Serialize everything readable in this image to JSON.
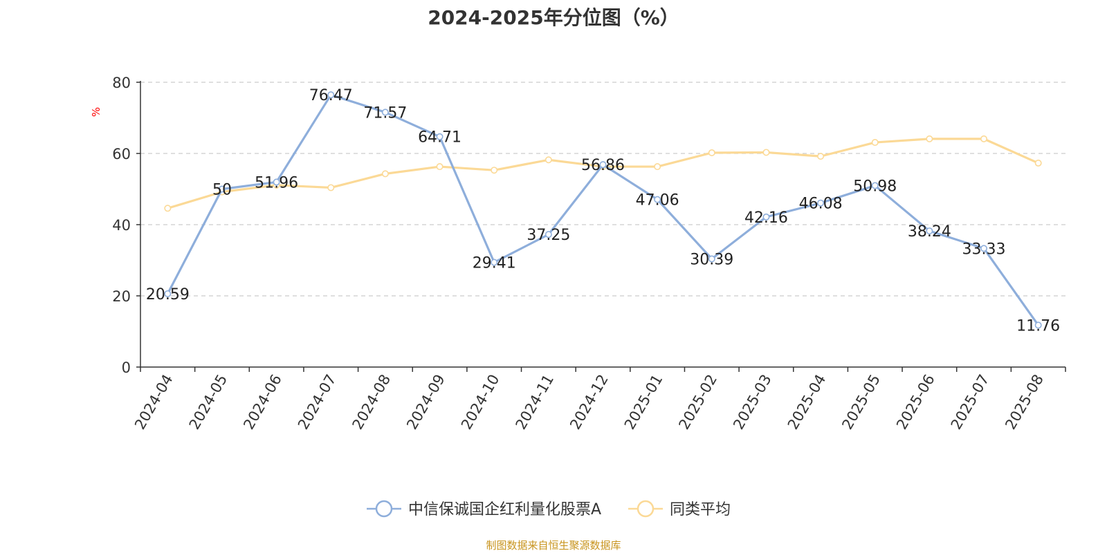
{
  "chart_data": {
    "type": "line",
    "title": "2024-2025年分位图（%）",
    "ylabel": "%",
    "xlabel": "",
    "ylim": [
      0,
      80
    ],
    "yticks": [
      0,
      20,
      40,
      60,
      80
    ],
    "grid": true,
    "legend_position": "bottom",
    "categories": [
      "2024-04",
      "2024-05",
      "2024-06",
      "2024-07",
      "2024-08",
      "2024-09",
      "2024-10",
      "2024-11",
      "2024-12",
      "2025-01",
      "2025-02",
      "2025-03",
      "2025-04",
      "2025-05",
      "2025-06",
      "2025-07",
      "2025-08"
    ],
    "series": [
      {
        "name": "中信保诚国企红利量化股票A",
        "color": "#8eaedb",
        "show_labels": true,
        "values": [
          20.59,
          50,
          51.96,
          76.47,
          71.57,
          64.71,
          29.41,
          37.25,
          56.86,
          47.06,
          30.39,
          42.16,
          46.08,
          50.98,
          38.24,
          33.33,
          11.76
        ]
      },
      {
        "name": "同类平均",
        "color": "#fbd996",
        "show_labels": false,
        "values": [
          44.6,
          49.2,
          51.1,
          50.4,
          54.3,
          56.3,
          55.3,
          58.2,
          56.3,
          56.3,
          60.2,
          60.3,
          59.2,
          63.1,
          64.1,
          64.1,
          57.3
        ]
      }
    ]
  },
  "source_note": "制图数据来自恒生聚源数据库"
}
